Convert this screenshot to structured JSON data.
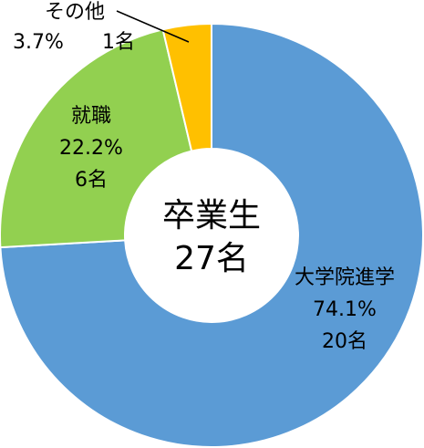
{
  "chart_data": {
    "type": "donut",
    "center_title": "卒業生",
    "center_value": "27名",
    "categories": [
      "大学院進学",
      "就職",
      "その他"
    ],
    "values": [
      74.1,
      22.2,
      3.7
    ],
    "value_labels": [
      "74.1%",
      "22.2%",
      "3.7%"
    ],
    "count_labels": [
      "20名",
      "6名",
      "1名"
    ],
    "colors": [
      "#5b9bd5",
      "#92d050",
      "#ffc000"
    ]
  }
}
